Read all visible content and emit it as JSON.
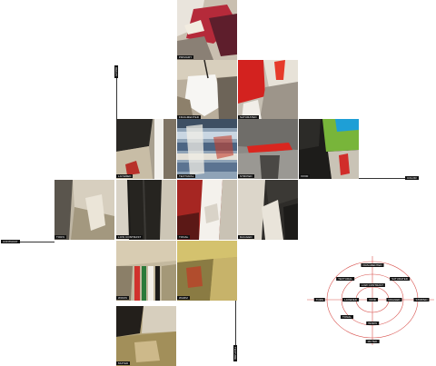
{
  "tiles": [
    {
      "caption": "PRIMARY"
    },
    {
      "caption": "FRAGMENTED"
    },
    {
      "caption": "SATURATED"
    },
    {
      "caption": "LAYERED"
    },
    {
      "caption": "TEXTURAL"
    },
    {
      "caption": "STRIPED"
    },
    {
      "caption": "VIVID"
    },
    {
      "caption": "TORN"
    },
    {
      "caption": "LOW CONTRAST"
    },
    {
      "caption": "TONAL"
    },
    {
      "caption": "RAGGED"
    },
    {
      "caption": "WORN"
    },
    {
      "caption": "WARM"
    },
    {
      "caption": "MUTED"
    }
  ],
  "axes": {
    "left": "CONTRAST",
    "right": "COLOR",
    "top": "DECAY",
    "bottom": "TEXTURE"
  },
  "diagram": {
    "labels": [
      "FRAGMENTED",
      "TEXTURAL",
      "SATURATED",
      "LOW CONTRAST",
      "TORN",
      "LAYERED",
      "VIVID",
      "RAGGED",
      "STRIPED",
      "TONAL",
      "WORN",
      "MUTED"
    ],
    "ring_color": "#d9534f"
  }
}
